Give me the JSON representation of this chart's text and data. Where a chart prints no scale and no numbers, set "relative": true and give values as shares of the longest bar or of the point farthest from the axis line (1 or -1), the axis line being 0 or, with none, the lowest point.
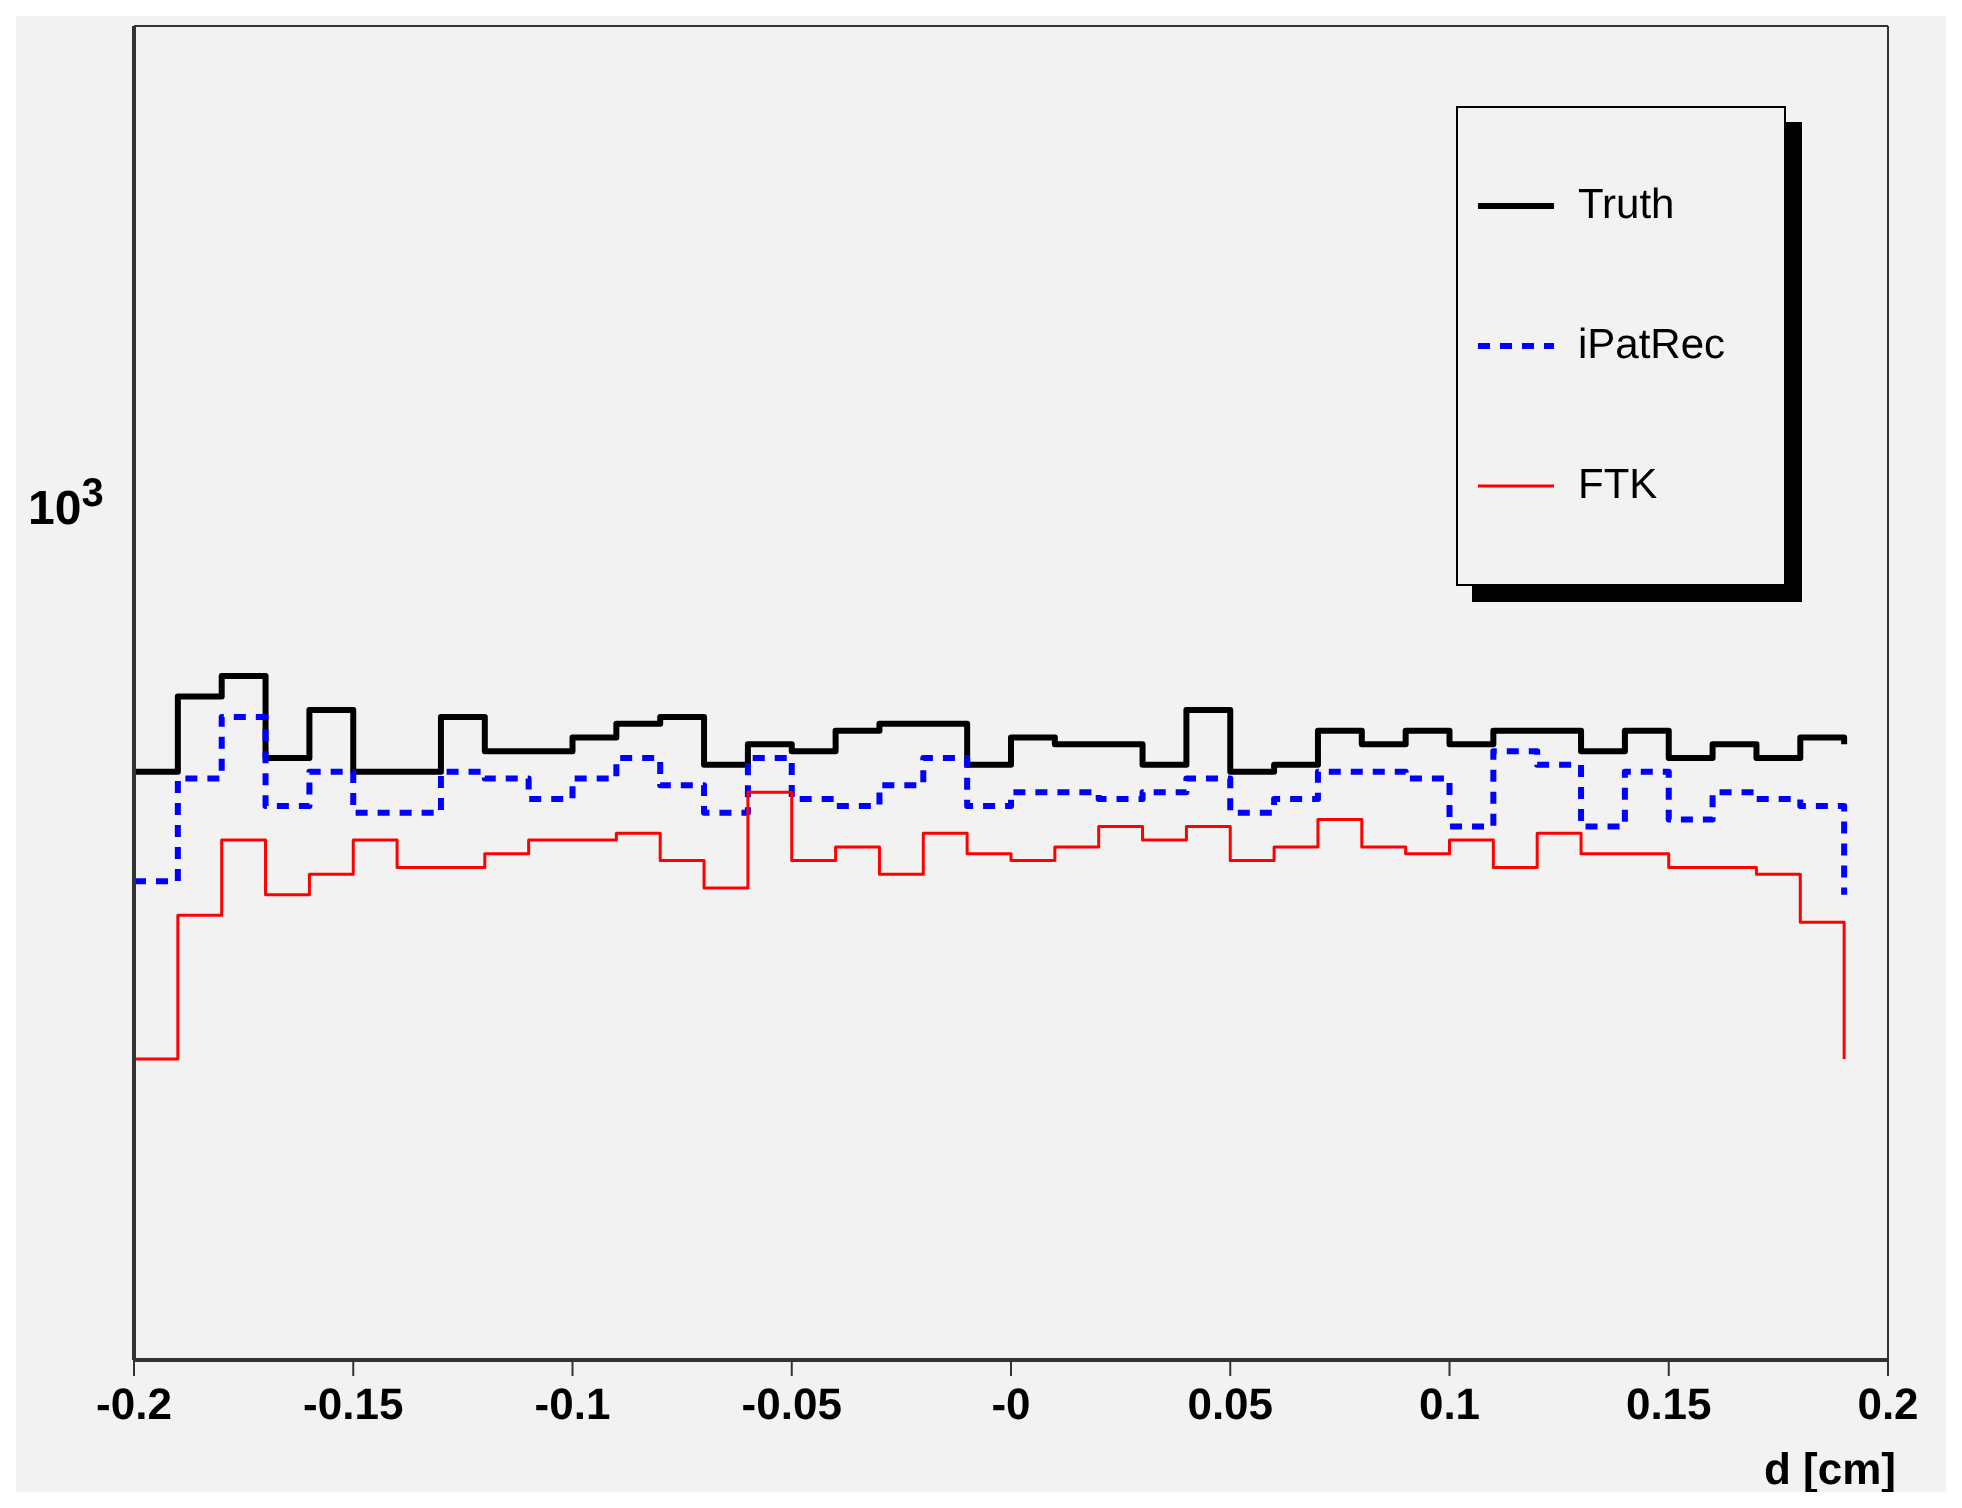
{
  "chart_data": {
    "type": "step",
    "xlabel": "d [cm]",
    "relative": true,
    "annotations": [
      "10$^{3}$"
    ],
    "x": [
      -0.2,
      -0.19,
      -0.18,
      -0.17,
      -0.16,
      -0.15,
      -0.14,
      -0.13,
      -0.12,
      -0.11,
      -0.1,
      -0.09,
      -0.08,
      -0.07,
      -0.06,
      -0.05,
      -0.04,
      -0.03,
      -0.02,
      -0.01,
      0,
      0.01,
      0.02,
      0.03,
      0.04,
      0.05,
      0.06,
      0.07,
      0.08,
      0.09,
      0.1,
      0.11,
      0.12,
      0.13,
      0.14,
      0.15,
      0.16,
      0.17,
      0.18,
      0.19
    ],
    "series": [
      {
        "name": "Truth",
        "color": "#000000",
        "line_style": "solid",
        "values": [
          0.86,
          0.97,
          1,
          0.88,
          0.95,
          0.86,
          0.86,
          0.94,
          0.89,
          0.89,
          0.91,
          0.93,
          0.94,
          0.87,
          0.9,
          0.89,
          0.92,
          0.93,
          0.93,
          0.87,
          0.91,
          0.9,
          0.9,
          0.87,
          0.95,
          0.86,
          0.87,
          0.92,
          0.9,
          0.92,
          0.9,
          0.92,
          0.92,
          0.89,
          0.92,
          0.88,
          0.9,
          0.88,
          0.91,
          0.9
        ]
      },
      {
        "name": "iPatRec",
        "color": "#0000ff",
        "line_style": "dashed",
        "values": [
          0.7,
          0.85,
          0.94,
          0.81,
          0.86,
          0.8,
          0.8,
          0.86,
          0.85,
          0.82,
          0.85,
          0.88,
          0.84,
          0.8,
          0.88,
          0.82,
          0.81,
          0.84,
          0.88,
          0.81,
          0.83,
          0.83,
          0.82,
          0.83,
          0.85,
          0.8,
          0.82,
          0.86,
          0.86,
          0.85,
          0.78,
          0.89,
          0.87,
          0.78,
          0.86,
          0.79,
          0.83,
          0.82,
          0.81,
          0.68
        ]
      },
      {
        "name": "FTK",
        "color": "#ff0000",
        "line_style": "solid",
        "values": [
          0.44,
          0.65,
          0.76,
          0.68,
          0.71,
          0.76,
          0.72,
          0.72,
          0.74,
          0.76,
          0.76,
          0.77,
          0.73,
          0.69,
          0.83,
          0.73,
          0.75,
          0.71,
          0.77,
          0.74,
          0.73,
          0.75,
          0.78,
          0.76,
          0.78,
          0.73,
          0.75,
          0.79,
          0.75,
          0.74,
          0.76,
          0.72,
          0.77,
          0.74,
          0.74,
          0.72,
          0.72,
          0.71,
          0.64,
          0.44
        ]
      }
    ],
    "xlim": [
      -0.2,
      0.2
    ],
    "xticks": [
      -0.2,
      -0.15,
      -0.1,
      -0.05,
      {
        "value": 0,
        "label": "-0"
      },
      0.05,
      0.1,
      0.15,
      0.2
    ],
    "legend": "top right"
  }
}
